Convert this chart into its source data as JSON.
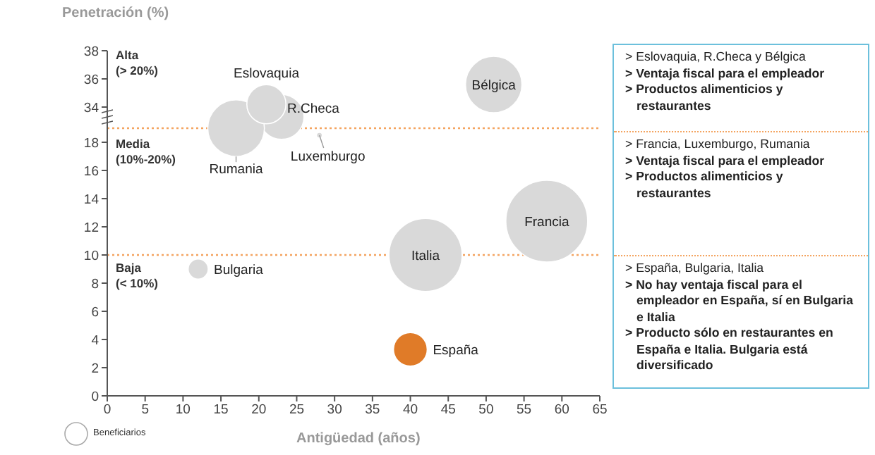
{
  "chart_data": [
    {
      "type": "bubble",
      "ylabel": "Penetración (%)",
      "xlim": [
        0,
        65
      ],
      "xticks": [
        0,
        5,
        10,
        15,
        20,
        25,
        30,
        35,
        40,
        45,
        50,
        55,
        60,
        65
      ],
      "ylim": [
        33.5,
        38
      ],
      "yticks": [
        34,
        36,
        38
      ],
      "tick_labels": "y",
      "annotations": [
        "Alta (> 20%)"
      ],
      "series": [
        {
          "name": "Eslovaquia",
          "color": "#d9d9d9",
          "x": [
            21
          ],
          "values": [
            34.2
          ],
          "sizes": [
            0.48
          ]
        },
        {
          "name": "Bélgica",
          "color": "#d9d9d9",
          "x": [
            51
          ],
          "values": [
            35.6
          ],
          "sizes": [
            1
          ]
        }
      ]
    },
    {
      "type": "bubble",
      "xlabel": "Antigüedad (años)",
      "xlim": [
        0,
        65
      ],
      "xticks": [
        0,
        5,
        10,
        15,
        20,
        25,
        30,
        35,
        40,
        45,
        50,
        55,
        60,
        65
      ],
      "ylim": [
        0,
        20
      ],
      "yticks": [
        0,
        2,
        4,
        6,
        8,
        10,
        12,
        14,
        16,
        18
      ],
      "annotations": [
        "Media (10%-20%)",
        "Baja (< 10%)",
        "Beneficiarios"
      ],
      "ref_lines": [
        {
          "axis": "y",
          "value": 19,
          "color": "#f4a460",
          "line_style": "dotted"
        },
        {
          "axis": "y",
          "value": 10,
          "color": "#f4a460",
          "line_style": "dotted"
        }
      ],
      "series": [
        {
          "name": "R.Checa",
          "color": "#d9d9d9",
          "x": [
            23
          ],
          "values": [
            19.8
          ],
          "sizes": [
            0.3
          ]
        },
        {
          "name": "Rumania",
          "color": "#d9d9d9",
          "x": [
            17
          ],
          "values": [
            19
          ],
          "sizes": [
            0.48
          ]
        },
        {
          "name": "Luxemburgo",
          "color": "#d9d9d9",
          "x": [
            28
          ],
          "values": [
            18.5
          ],
          "sizes": [
            0.005
          ]
        },
        {
          "name": "Francia",
          "color": "#d9d9d9",
          "x": [
            58
          ],
          "values": [
            12.4
          ],
          "sizes": [
            1
          ]
        },
        {
          "name": "Italia",
          "color": "#d9d9d9",
          "x": [
            42
          ],
          "values": [
            10
          ],
          "sizes": [
            0.8
          ]
        },
        {
          "name": "Bulgaria",
          "color": "#d9d9d9",
          "x": [
            12
          ],
          "values": [
            9
          ],
          "sizes": [
            0.06
          ]
        },
        {
          "name": "España",
          "color": "#e07b28",
          "x": [
            40
          ],
          "values": [
            3.3
          ],
          "sizes": [
            0.17
          ]
        }
      ]
    },
    {
      "type": "other",
      "annotations": [
        "> Eslovaquia, R.Checa y Bélgica",
        "> Ventaja fiscal para el empleador",
        "> Productos alimenticios y restaurantes",
        "> Francia, Luxemburgo, Rumania",
        "> Ventaja fiscal para el empleador",
        "> Productos alimenticios y restaurantes",
        "> España,  Bulgaria, Italia",
        "> No hay ventaja fiscal para el empleador en España, sí en Bulgaria e Italia",
        "> Producto sólo en restaurantes en España e Italia. Bulgaria está diversificado"
      ]
    }
  ]
}
